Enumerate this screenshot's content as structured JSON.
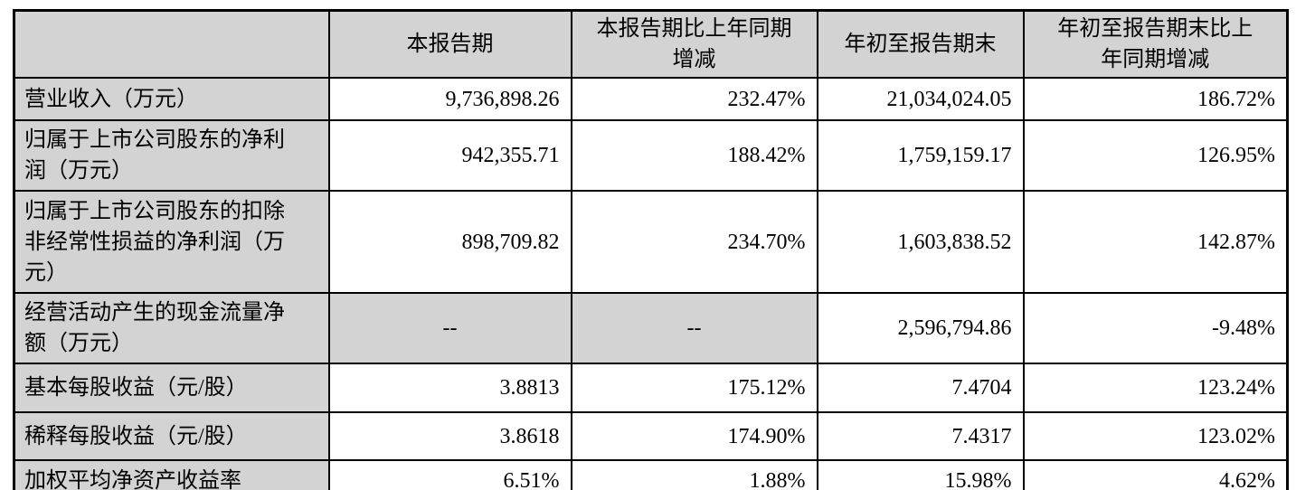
{
  "table": {
    "columns": [
      "",
      "本报告期",
      "本报告期比上年同期\n增减",
      "年初至报告期末",
      "年初至报告期末比上\n年同期增减"
    ],
    "rows": [
      {
        "label": "营业收入（万元）",
        "values": [
          "9,736,898.26",
          "232.47%",
          "21,034,024.05",
          "186.72%"
        ]
      },
      {
        "label": "归属于上市公司股东的净利\n润（万元）",
        "values": [
          "942,355.71",
          "188.42%",
          "1,759,159.17",
          "126.95%"
        ]
      },
      {
        "label": "归属于上市公司股东的扣除\n非经常性损益的净利润（万\n元）",
        "values": [
          "898,709.82",
          "234.70%",
          "1,603,838.52",
          "142.87%"
        ]
      },
      {
        "label": "经营活动产生的现金流量净\n额（万元）",
        "values": [
          "--",
          "--",
          "2,596,794.86",
          "-9.48%"
        ]
      },
      {
        "label": "基本每股收益（元/股）",
        "values": [
          "3.8813",
          "175.12%",
          "7.4704",
          "123.24%"
        ]
      },
      {
        "label": "稀释每股收益（元/股）",
        "values": [
          "3.8618",
          "174.90%",
          "7.4317",
          "123.02%"
        ]
      },
      {
        "label": "加权平均净资产收益率",
        "values": [
          "6.51%",
          "1.88%",
          "15.98%",
          "4.62%"
        ]
      }
    ],
    "na_placeholder": "--"
  },
  "colors": {
    "header_bg": "#d3d3d3",
    "label_bg": "#d3d3d3",
    "border": "#000000",
    "text": "#000000",
    "page_bg": "#ffffff"
  }
}
